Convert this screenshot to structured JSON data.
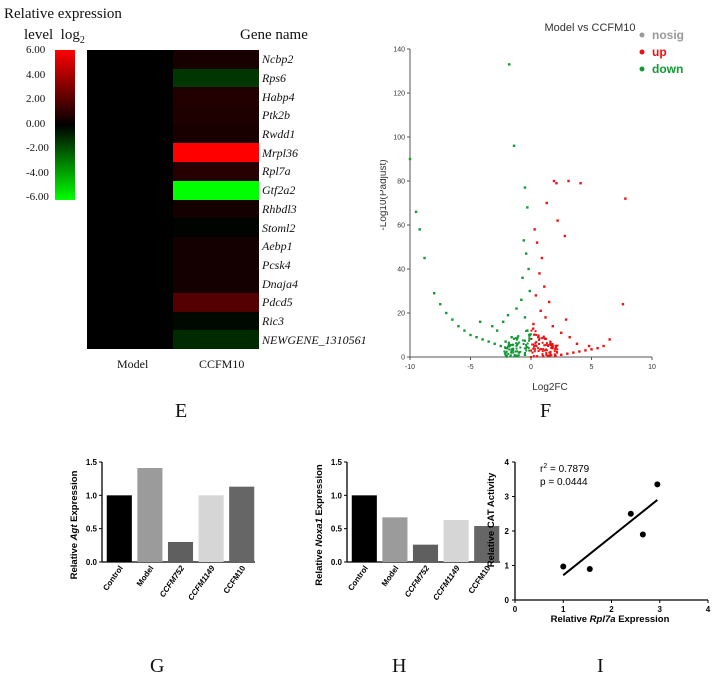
{
  "heatmap": {
    "legend_title_line1": "Relative expression",
    "legend_title_line2": "level",
    "legend_title_log": "log",
    "legend_title_sub": "2",
    "gene_header": "Gene name",
    "legend_ticks": [
      "6.00",
      "4.00",
      "2.00",
      "0.00",
      "-2.00",
      "-4.00",
      "-6.00"
    ],
    "columns": [
      "Model",
      "CCFM10"
    ],
    "genes": [
      "Ncbp2",
      "Rps6",
      "Habp4",
      "Ptk2b",
      "Rwdd1",
      "Mrpl36",
      "Rpl7a",
      "Gtf2a2",
      "Rhbdl3",
      "Stoml2",
      "Aebp1",
      "Pcsk4",
      "Dnaja4",
      "Pdcd5",
      "Ric3",
      "NEWGENE_1310561"
    ],
    "ccfm10_values": [
      0.6,
      -1.3,
      0.8,
      0.7,
      0.6,
      6.0,
      0.9,
      -6.0,
      0.5,
      -0.1,
      0.5,
      0.5,
      0.5,
      2.0,
      -0.2,
      -1.0
    ],
    "model_values": [
      0,
      0,
      0,
      0,
      0,
      0,
      0,
      0,
      0,
      0,
      0,
      0,
      0,
      0,
      0,
      0
    ],
    "colors": {
      "up": "#ff0000",
      "zero": "#000000",
      "down": "#00ff00"
    }
  },
  "volcano": {
    "title": "Model vs CCFM10",
    "xlabel": "Log2FC",
    "ylabel": "-Log10(Padjust)",
    "xticks": [
      "-10",
      "-5",
      "0",
      "5",
      "10"
    ],
    "yticks": [
      "0",
      "20",
      "40",
      "60",
      "80",
      "100",
      "120",
      "140"
    ],
    "legend": [
      {
        "label": "nosig",
        "color": "#999999"
      },
      {
        "label": "up",
        "color": "#ee1111"
      },
      {
        "label": "down",
        "color": "#119933"
      }
    ]
  },
  "panel_E": {
    "letter": "E"
  },
  "panel_F": {
    "letter": "F"
  },
  "panel_G": {
    "letter": "G"
  },
  "panel_H": {
    "letter": "H"
  },
  "panel_I": {
    "letter": "I"
  },
  "chart_data": [
    {
      "type": "scatter",
      "title": "Model vs CCFM10",
      "xlabel": "Log2FC",
      "ylabel": "-Log10(Padjust)",
      "xlim": [
        -10,
        10
      ],
      "ylim": [
        0,
        140
      ],
      "series": [
        {
          "name": "down",
          "color": "#119933",
          "points": [
            [
              -10,
              90
            ],
            [
              -9.5,
              66
            ],
            [
              -9.2,
              58
            ],
            [
              -8.8,
              45
            ],
            [
              -1.8,
              133
            ],
            [
              -1.4,
              96
            ],
            [
              -0.5,
              77
            ],
            [
              -0.3,
              68
            ],
            [
              -0.6,
              53
            ],
            [
              -0.4,
              47
            ],
            [
              -0.2,
              40
            ],
            [
              -0.7,
              36
            ],
            [
              -0.1,
              30
            ],
            [
              -8,
              29
            ],
            [
              -7.5,
              24
            ],
            [
              -7,
              20
            ],
            [
              -6.5,
              17
            ],
            [
              -6,
              14
            ],
            [
              -5.5,
              12
            ],
            [
              -5,
              10
            ],
            [
              -4.5,
              9
            ],
            [
              -4,
              8
            ],
            [
              -3.5,
              7
            ],
            [
              -3,
              6
            ],
            [
              -2.5,
              5
            ],
            [
              -2,
              4
            ],
            [
              -1.5,
              3
            ],
            [
              -1,
              2
            ],
            [
              -0.5,
              1
            ],
            [
              -2.8,
              12
            ],
            [
              -3.2,
              14
            ],
            [
              -2.3,
              16
            ],
            [
              -1.9,
              19
            ],
            [
              -1.2,
              22
            ],
            [
              -0.8,
              26
            ],
            [
              -0.5,
              18
            ],
            [
              -1.6,
              9
            ],
            [
              -2.1,
              7
            ],
            [
              -0.3,
              12
            ],
            [
              -4.2,
              16
            ]
          ]
        },
        {
          "name": "up",
          "color": "#ee1111",
          "points": [
            [
              1.9,
              80
            ],
            [
              2.1,
              79
            ],
            [
              3.1,
              80
            ],
            [
              4.1,
              79
            ],
            [
              7.8,
              72
            ],
            [
              1.3,
              70
            ],
            [
              0.3,
              58
            ],
            [
              2.2,
              62
            ],
            [
              2.8,
              55
            ],
            [
              0.5,
              52
            ],
            [
              0.9,
              45
            ],
            [
              0.7,
              38
            ],
            [
              1.1,
              32
            ],
            [
              0.4,
              28
            ],
            [
              1.5,
              25
            ],
            [
              7.6,
              24
            ],
            [
              6.5,
              8
            ],
            [
              6,
              5
            ],
            [
              5.5,
              4
            ],
            [
              5,
              3.5
            ],
            [
              4.5,
              3
            ],
            [
              4,
              2.5
            ],
            [
              3.5,
              2
            ],
            [
              3,
              1.5
            ],
            [
              2.5,
              1
            ],
            [
              2,
              0.8
            ],
            [
              1.5,
              0.6
            ],
            [
              1,
              0.4
            ],
            [
              0.5,
              0.3
            ],
            [
              1.8,
              14
            ],
            [
              2.5,
              11
            ],
            [
              3.2,
              9
            ],
            [
              1.2,
              18
            ],
            [
              0.8,
              21
            ],
            [
              2.9,
              17
            ],
            [
              0.2,
              15
            ],
            [
              1.6,
              6
            ],
            [
              3.8,
              6
            ],
            [
              4.8,
              5
            ],
            [
              0.6,
              9
            ]
          ]
        }
      ]
    },
    {
      "type": "bar",
      "title": "",
      "xlabel": "",
      "ylabel_prefix": "Relative",
      "ylabel_gene": "Agt",
      "ylabel_suffix": "Expression",
      "categories": [
        "Control",
        "Model",
        "CCFM752",
        "CCFM1149",
        "CCFM10"
      ],
      "values": [
        1.0,
        1.41,
        0.3,
        1.0,
        1.13
      ],
      "colors": [
        "#000000",
        "#9b9b9b",
        "#5f5f5f",
        "#d6d6d6",
        "#666666"
      ],
      "ylim": [
        0,
        1.5
      ],
      "yticks": [
        "0.0",
        "0.5",
        "1.0",
        "1.5"
      ]
    },
    {
      "type": "bar",
      "title": "",
      "xlabel": "",
      "ylabel_prefix": "Relative",
      "ylabel_gene": "Noxa1",
      "ylabel_suffix": "Expression",
      "categories": [
        "Control",
        "Model",
        "CCFM752",
        "CCFM1149",
        "CCFM10"
      ],
      "values": [
        1.0,
        0.67,
        0.26,
        0.63,
        0.54
      ],
      "colors": [
        "#000000",
        "#9b9b9b",
        "#5f5f5f",
        "#d6d6d6",
        "#666666"
      ],
      "ylim": [
        0,
        1.5
      ],
      "yticks": [
        "0.0",
        "0.5",
        "1.0",
        "1.5"
      ]
    },
    {
      "type": "scatter",
      "title": "",
      "xlabel_prefix": "Relative",
      "xlabel_gene": "Rpl7a",
      "xlabel_suffix": "Expression",
      "ylabel": "Relative CAT Activity",
      "xlim": [
        0,
        4
      ],
      "ylim": [
        0,
        4
      ],
      "xticks": [
        "0",
        "1",
        "2",
        "3",
        "4"
      ],
      "yticks": [
        "0",
        "1",
        "2",
        "3",
        "4"
      ],
      "r2_text": "r",
      "r2_sup": "2",
      "r2_value": " = 0.7879",
      "p_text": "p = 0.0444",
      "points": [
        [
          1.0,
          0.97
        ],
        [
          1.55,
          0.9
        ],
        [
          2.4,
          2.5
        ],
        [
          2.65,
          1.9
        ],
        [
          2.95,
          3.35
        ]
      ],
      "fit": [
        [
          1.0,
          0.72
        ],
        [
          2.95,
          2.9
        ]
      ]
    }
  ]
}
